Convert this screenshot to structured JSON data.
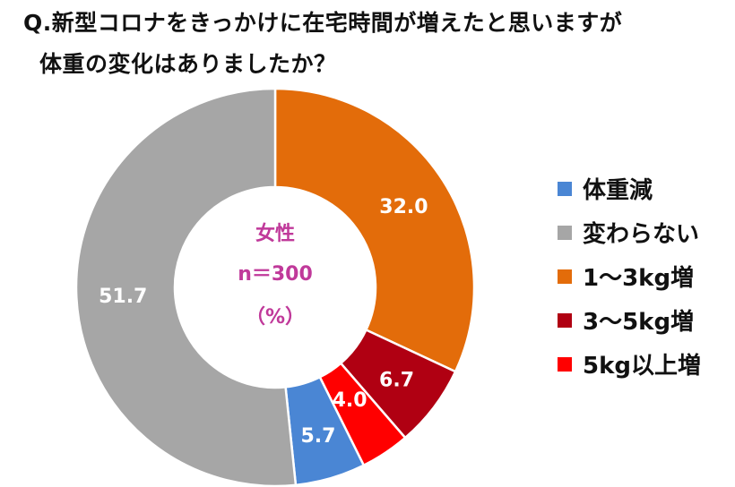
{
  "title_lines": [
    "Q.新型コロナをきっかけに在宅時間が増えたと思いますが",
    "体重の変化はありましたか？"
  ],
  "chart_data": {
    "type": "pie",
    "donut": true,
    "title": "Q.新型コロナをきっかけに在宅時間が増えたと思いますが 体重の変化はありましたか？",
    "center_text": [
      "女性",
      "n＝300",
      "（%）"
    ],
    "order": "clockwise from top",
    "slices": [
      {
        "label": "1〜3kg増",
        "value": 32.0,
        "display": "32.0",
        "color": "#e36c0a"
      },
      {
        "label": "3〜5kg増",
        "value": 6.7,
        "display": "6.7",
        "color": "#b00012"
      },
      {
        "label": "5kg以上増",
        "value": 4.0,
        "display": "4.0",
        "color": "#ff0000"
      },
      {
        "label": "体重減",
        "value": 5.7,
        "display": "5.7",
        "color": "#4a86d4"
      },
      {
        "label": "変わらない",
        "value": 51.7,
        "display": "51.7",
        "color": "#a6a6a6"
      }
    ],
    "legend": {
      "placement": "right",
      "items": [
        {
          "label": "体重減",
          "color": "#4a86d4"
        },
        {
          "label": "変わらない",
          "color": "#a6a6a6"
        },
        {
          "label": "1〜3kg増",
          "color": "#e36c0a"
        },
        {
          "label": "3〜5kg増",
          "color": "#b00012"
        },
        {
          "label": "5kg以上増",
          "color": "#ff0000"
        }
      ]
    }
  }
}
